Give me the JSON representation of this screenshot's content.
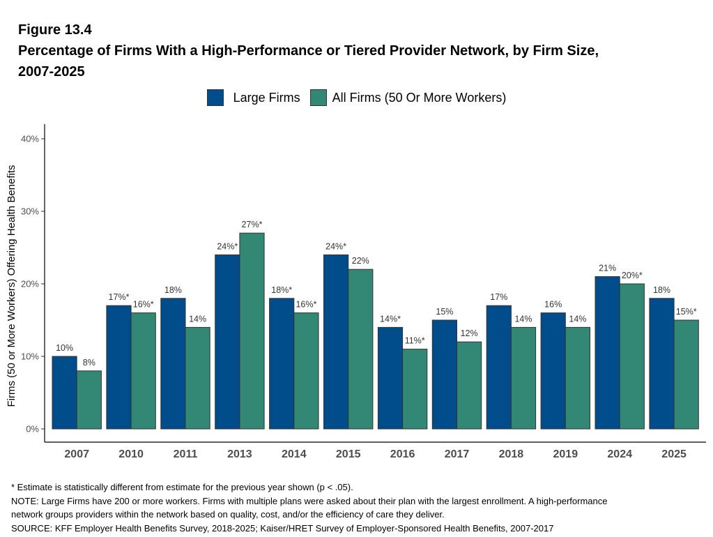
{
  "figure_label": "Figure 13.4",
  "title_line1": "Percentage of Firms With a High-Performance or Tiered Provider Network, by Firm Size,",
  "title_line2": "2007-2025",
  "colors": {
    "large": "#014d8b",
    "all": "#338875",
    "bar_stroke": "#333333",
    "axis": "#000000"
  },
  "chart_data": {
    "type": "bar",
    "title": "Percentage of Firms With a High-Performance or Tiered Provider Network, by Firm Size, 2007-2025",
    "xlabel": "",
    "ylabel": "Firms (50 or More Workers) Offering Health Benefits",
    "ylim": [
      0,
      42
    ],
    "yticks": [
      0,
      10,
      20,
      30,
      40
    ],
    "ytick_labels": [
      "0%",
      "10%",
      "20%",
      "30%",
      "40%"
    ],
    "categories": [
      "2007",
      "2010",
      "2011",
      "2013",
      "2014",
      "2015",
      "2016",
      "2017",
      "2018",
      "2019",
      "2024",
      "2025"
    ],
    "series": [
      {
        "name": "Large Firms",
        "values": [
          10,
          17,
          18,
          24,
          18,
          24,
          14,
          15,
          17,
          16,
          21,
          18
        ],
        "labels": [
          "10%",
          "17%*",
          "18%",
          "24%*",
          "18%*",
          "24%*",
          "14%*",
          "15%",
          "17%",
          "16%",
          "21%",
          "18%"
        ]
      },
      {
        "name": "All Firms (50 Or More Workers)",
        "values": [
          8,
          16,
          14,
          27,
          16,
          22,
          11,
          12,
          14,
          14,
          20,
          15
        ],
        "labels": [
          "8%",
          "16%*",
          "14%",
          "27%*",
          "16%*",
          "22%",
          "11%*",
          "12%",
          "14%",
          "14%",
          "20%*",
          "15%*"
        ]
      }
    ],
    "legend_position": "top"
  },
  "notes": [
    "* Estimate is statistically different from estimate for the previous year shown (p < .05).",
    "NOTE: Large Firms have 200 or more workers.  Firms with multiple plans were asked about their plan with the largest enrollment.  A high-performance",
    "network groups providers within the network based on quality, cost, and/or the efficiency of care they deliver.",
    "SOURCE: KFF Employer Health Benefits Survey, 2018-2025; Kaiser/HRET Survey of Employer-Sponsored Health Benefits, 2007-2017"
  ]
}
